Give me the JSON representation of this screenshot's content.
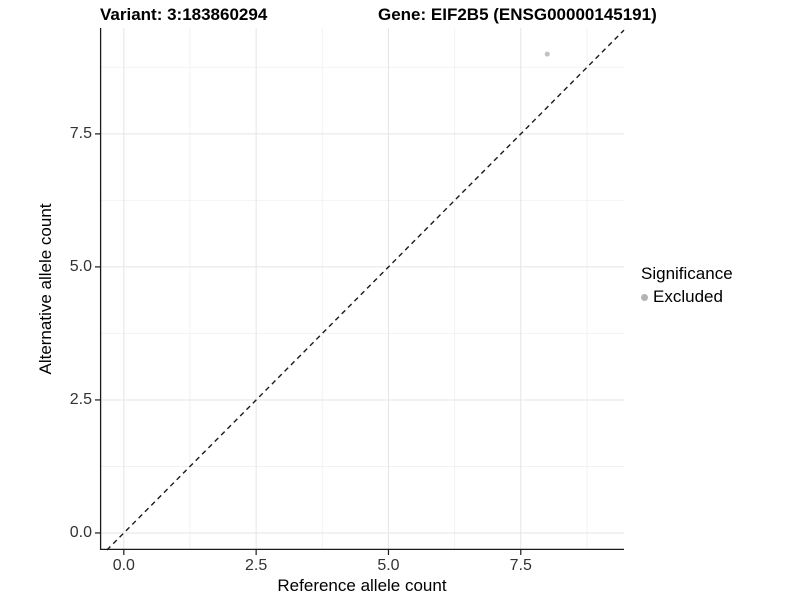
{
  "chart_data": {
    "type": "scatter",
    "titles": {
      "left": "Variant: 3:183860294",
      "right": "Gene: EIF2B5 (ENSG00000145191)"
    },
    "xlabel": "Reference allele count",
    "ylabel": "Alternative allele count",
    "xlim": [
      -0.45,
      9.45
    ],
    "ylim": [
      -0.32,
      9.49
    ],
    "x_ticks": {
      "values": [
        0,
        2.5,
        5,
        7.5
      ],
      "labels": [
        "0.0",
        "2.5",
        "5.0",
        "7.5"
      ]
    },
    "y_ticks": {
      "values": [
        0,
        2.5,
        5,
        7.5
      ],
      "labels": [
        "0.0",
        "2.5",
        "5.0",
        "7.5"
      ]
    },
    "minor_x": [
      1.25,
      3.75,
      6.25,
      8.75
    ],
    "minor_y": [
      1.25,
      3.75,
      6.25,
      8.75
    ],
    "grid": "major+minor",
    "abline": {
      "slope": 1,
      "intercept": 0,
      "style": "dashed"
    },
    "points": [
      {
        "x": 8,
        "y": 9,
        "series": "Excluded"
      }
    ],
    "point_radius": 2.5,
    "legend": {
      "title": "Significance",
      "position": "right",
      "items": [
        {
          "label": "Excluded",
          "color": "#b3b3b3"
        }
      ]
    },
    "colors": {
      "point": "#c2c2c2",
      "grid_major": "#e5e5e5",
      "grid_minor": "#f2f2f2",
      "axis_line": "#1a1a1a",
      "tick_mark": "#1a1a1a",
      "tick_label": "#333333",
      "abline": "#1a1a1a"
    }
  }
}
